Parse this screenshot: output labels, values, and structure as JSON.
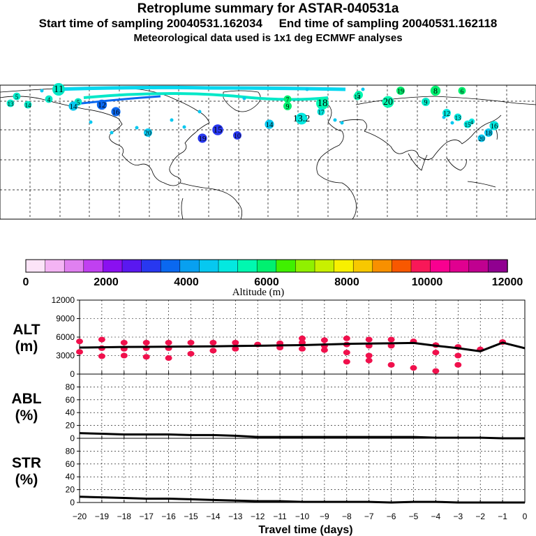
{
  "header": {
    "title": "Retroplume summary for ASTAR-040531a",
    "line2": "Start time of sampling 20040531.162034     End time of sampling 20040531.162118",
    "line3": "Meteorological data used is 1x1 deg ECMWF analyses"
  },
  "colors": {
    "colorbar": [
      "#fce4f8",
      "#f4b4f4",
      "#e080f0",
      "#c040f0",
      "#8a10f0",
      "#5a18f0",
      "#2838f0",
      "#0a68f0",
      "#08a0f0",
      "#06c8f0",
      "#04e8e0",
      "#00f8b0",
      "#00f070",
      "#40f000",
      "#90f000",
      "#c8f000",
      "#f8f000",
      "#f8c800",
      "#f89000",
      "#f85800",
      "#f81858",
      "#f80090",
      "#e00090",
      "#c00090",
      "#900090"
    ],
    "alt_points": "#f0104c",
    "line": "#000000"
  },
  "colorbar": {
    "tick_labels": [
      "0",
      "2000",
      "4000",
      "6000",
      "8000",
      "10000",
      "12000"
    ],
    "label": "Altitude (m)"
  },
  "map": {
    "labels": [
      {
        "text": "11"
      },
      {
        "text": "13"
      },
      {
        "text": "5"
      },
      {
        "text": "14"
      },
      {
        "text": "4"
      },
      {
        "text": "5"
      },
      {
        "text": "14"
      },
      {
        "text": "12"
      },
      {
        "text": "16"
      },
      {
        "text": "20"
      },
      {
        "text": "19"
      },
      {
        "text": "10"
      },
      {
        "text": "15"
      },
      {
        "text": "14"
      },
      {
        "text": "13.2"
      },
      {
        "text": "18"
      },
      {
        "text": "17"
      },
      {
        "text": "9"
      },
      {
        "text": "7"
      },
      {
        "text": "5"
      },
      {
        "text": "14"
      },
      {
        "text": "20"
      },
      {
        "text": "19"
      },
      {
        "text": "8"
      },
      {
        "text": "6"
      },
      {
        "text": "9"
      },
      {
        "text": "12"
      },
      {
        "text": "13"
      },
      {
        "text": "15"
      },
      {
        "text": "4"
      },
      {
        "text": "16"
      },
      {
        "text": "18"
      },
      {
        "text": "20"
      }
    ]
  },
  "chart_data": [
    {
      "type": "scatter",
      "name": "ALT",
      "ylabel": "ALT\n(m)",
      "ylabel_line1": "ALT",
      "ylabel_line2": "(m)",
      "ylim": [
        0,
        12000
      ],
      "yticks": [
        "0",
        "3000",
        "6000",
        "9000",
        "12000"
      ],
      "x": [
        -20,
        -19,
        -18,
        -17,
        -16,
        -15,
        -14,
        -13,
        -12,
        -11,
        -10,
        -9,
        -8,
        -7,
        -6,
        -5,
        -4,
        -3,
        -2,
        -1,
        0
      ],
      "mean_line": [
        4300,
        4350,
        4400,
        4420,
        4450,
        4470,
        4500,
        4550,
        4600,
        4650,
        4700,
        4800,
        4900,
        4950,
        5000,
        5050,
        4600,
        4200,
        3700,
        5100,
        4200
      ],
      "points": [
        {
          "x": -20,
          "y": 5300
        },
        {
          "x": -20,
          "y": 3600
        },
        {
          "x": -19,
          "y": 5600
        },
        {
          "x": -19,
          "y": 4200
        },
        {
          "x": -19,
          "y": 2900
        },
        {
          "x": -18,
          "y": 5100
        },
        {
          "x": -18,
          "y": 4100
        },
        {
          "x": -18,
          "y": 3000
        },
        {
          "x": -17,
          "y": 5100
        },
        {
          "x": -17,
          "y": 4200
        },
        {
          "x": -17,
          "y": 2800
        },
        {
          "x": -16,
          "y": 5100
        },
        {
          "x": -16,
          "y": 4200
        },
        {
          "x": -16,
          "y": 2600
        },
        {
          "x": -15,
          "y": 5100
        },
        {
          "x": -15,
          "y": 3300
        },
        {
          "x": -14,
          "y": 5100
        },
        {
          "x": -14,
          "y": 3800
        },
        {
          "x": -13,
          "y": 5100
        },
        {
          "x": -13,
          "y": 4100
        },
        {
          "x": -12,
          "y": 4800
        },
        {
          "x": -11,
          "y": 5000
        },
        {
          "x": -11,
          "y": 4300
        },
        {
          "x": -10,
          "y": 5800
        },
        {
          "x": -10,
          "y": 5100
        },
        {
          "x": -10,
          "y": 4100
        },
        {
          "x": -9,
          "y": 5500
        },
        {
          "x": -9,
          "y": 4600
        },
        {
          "x": -9,
          "y": 3900
        },
        {
          "x": -8,
          "y": 5800
        },
        {
          "x": -8,
          "y": 4800
        },
        {
          "x": -8,
          "y": 3500
        },
        {
          "x": -8,
          "y": 2000
        },
        {
          "x": -7,
          "y": 5600
        },
        {
          "x": -7,
          "y": 4600
        },
        {
          "x": -7,
          "y": 3000
        },
        {
          "x": -7,
          "y": 2200
        },
        {
          "x": -6,
          "y": 5600
        },
        {
          "x": -6,
          "y": 4600
        },
        {
          "x": -6,
          "y": 1500
        },
        {
          "x": -5,
          "y": 5300
        },
        {
          "x": -5,
          "y": 1000
        },
        {
          "x": -4,
          "y": 4700
        },
        {
          "x": -4,
          "y": 3500
        },
        {
          "x": -4,
          "y": 500
        },
        {
          "x": -3,
          "y": 4400
        },
        {
          "x": -3,
          "y": 3000
        },
        {
          "x": -3,
          "y": 1500
        },
        {
          "x": -2,
          "y": 4000
        },
        {
          "x": -1,
          "y": 5200
        }
      ]
    },
    {
      "type": "line",
      "name": "ABL",
      "ylabel_line1": "ABL",
      "ylabel_line2": "(%)",
      "ylim": [
        0,
        100
      ],
      "yticks": [
        "0",
        "20",
        "40",
        "60",
        "80"
      ],
      "x": [
        -20,
        -19,
        -18,
        -17,
        -16,
        -15,
        -14,
        -13,
        -12,
        -11,
        -10,
        -9,
        -8,
        -7,
        -6,
        -5,
        -4,
        -3,
        -2,
        -1,
        0
      ],
      "values": [
        8,
        7,
        6,
        6,
        6,
        5,
        5,
        4,
        2,
        2,
        2,
        2,
        2,
        2,
        2,
        2,
        1,
        1,
        1,
        0,
        0
      ]
    },
    {
      "type": "line",
      "name": "STR",
      "ylabel_line1": "STR",
      "ylabel_line2": "(%)",
      "ylim": [
        0,
        100
      ],
      "yticks": [
        "0",
        "20",
        "40",
        "60",
        "80"
      ],
      "x": [
        -20,
        -19,
        -18,
        -17,
        -16,
        -15,
        -14,
        -13,
        -12,
        -11,
        -10,
        -9,
        -8,
        -7,
        -6,
        -5,
        -4,
        -3,
        -2,
        -1,
        0
      ],
      "values": [
        9,
        8,
        7,
        6,
        6,
        5,
        4,
        3,
        2,
        2,
        1,
        1,
        1,
        1,
        0,
        1,
        1,
        0,
        0,
        0,
        0
      ]
    }
  ],
  "xaxis": {
    "label": "Travel time (days)",
    "ticks": [
      "−20",
      "−19",
      "−18",
      "−17",
      "−16",
      "−15",
      "−14",
      "−13",
      "−12",
      "−11",
      "−10",
      "−9",
      "−8",
      "−7",
      "−6",
      "−5",
      "−4",
      "−3",
      "−2",
      "−1",
      "0"
    ]
  }
}
